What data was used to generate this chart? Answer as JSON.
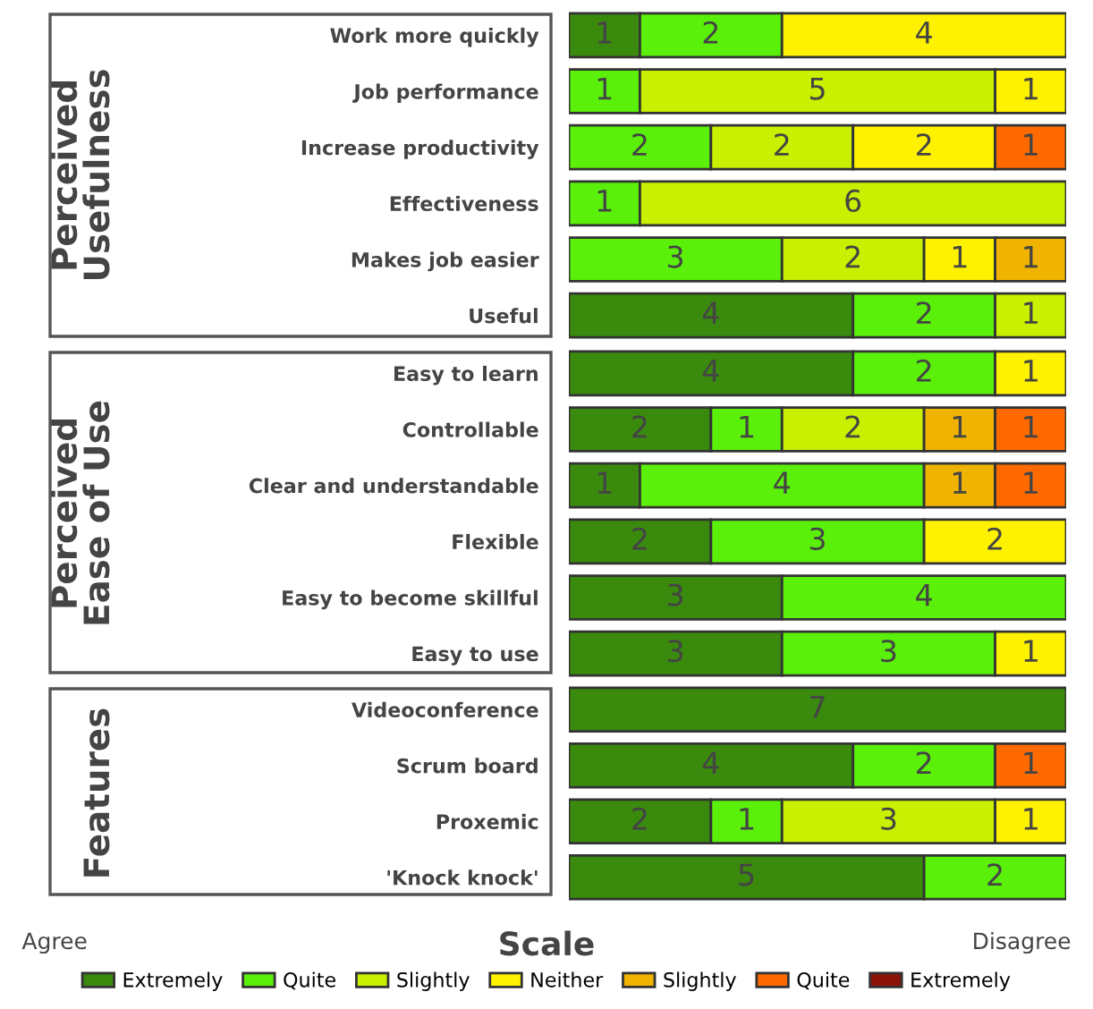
{
  "chart_data": [
    {
      "type": "bar",
      "orientation": "horizontal",
      "stacked": true,
      "data_labels": true,
      "ylabel": "Perceived\nUsefulness",
      "categories": [
        "Work more quickly",
        "Job performance",
        "Increase productivity",
        "Effectiveness",
        "Makes job easier",
        "Useful"
      ],
      "series": [
        {
          "color": "#3a8a0e",
          "values": [
            1,
            null,
            null,
            null,
            null,
            4
          ]
        },
        {
          "color": "#5af00a",
          "values": [
            2,
            1,
            2,
            1,
            3,
            2
          ]
        },
        {
          "color": "#c8f000",
          "values": [
            null,
            5,
            2,
            6,
            2,
            1
          ]
        },
        {
          "color": "#fff200",
          "values": [
            4,
            1,
            2,
            null,
            1,
            null
          ]
        },
        {
          "color": "#f0b400",
          "values": [
            null,
            null,
            null,
            null,
            1,
            null
          ]
        },
        {
          "color": "#ff6a00",
          "values": [
            null,
            null,
            1,
            null,
            null,
            null
          ]
        },
        {
          "color": "#8b1208",
          "values": [
            null,
            null,
            null,
            null,
            null,
            null
          ]
        }
      ]
    },
    {
      "type": "bar",
      "orientation": "horizontal",
      "stacked": true,
      "data_labels": true,
      "ylabel": "Perceived\nEase of Use",
      "categories": [
        "Easy to learn",
        "Controllable",
        "Clear and understandable",
        "Flexible",
        "Easy to become skillful",
        "Easy to use"
      ],
      "series": [
        {
          "color": "#3a8a0e",
          "values": [
            4,
            2,
            1,
            2,
            3,
            3
          ]
        },
        {
          "color": "#5af00a",
          "values": [
            2,
            1,
            4,
            3,
            4,
            3
          ]
        },
        {
          "color": "#c8f000",
          "values": [
            null,
            2,
            null,
            null,
            null,
            null
          ]
        },
        {
          "color": "#fff200",
          "values": [
            1,
            null,
            null,
            2,
            null,
            1
          ]
        },
        {
          "color": "#f0b400",
          "values": [
            null,
            1,
            1,
            null,
            null,
            null
          ]
        },
        {
          "color": "#ff6a00",
          "values": [
            null,
            1,
            1,
            null,
            null,
            null
          ]
        },
        {
          "color": "#8b1208",
          "values": [
            null,
            null,
            null,
            null,
            null,
            null
          ]
        }
      ]
    },
    {
      "type": "bar",
      "orientation": "horizontal",
      "stacked": true,
      "data_labels": true,
      "ylabel": "Features",
      "categories": [
        "Videoconference",
        "Scrum board",
        "Proxemic",
        "'Knock knock'"
      ],
      "legend": "bottom",
      "legend_title": "Scale",
      "annotations": [
        "Agree",
        "Disagree"
      ],
      "series": [
        {
          "name": "Extremely",
          "color": "#3a8a0e",
          "values": [
            7,
            4,
            2,
            5
          ]
        },
        {
          "name": "Quite",
          "color": "#5af00a",
          "values": [
            null,
            2,
            1,
            2
          ]
        },
        {
          "name": "Slightly",
          "color": "#c8f000",
          "values": [
            null,
            null,
            3,
            null
          ]
        },
        {
          "name": "Neither",
          "color": "#fff200",
          "values": [
            null,
            null,
            1,
            null
          ]
        },
        {
          "name": "Slightly",
          "color": "#f0b400",
          "values": [
            null,
            null,
            null,
            null
          ]
        },
        {
          "name": "Quite",
          "color": "#ff6a00",
          "values": [
            null,
            1,
            null,
            null
          ]
        },
        {
          "name": "Extremely",
          "color": "#8b1208",
          "values": [
            null,
            null,
            null,
            null
          ]
        }
      ]
    }
  ]
}
